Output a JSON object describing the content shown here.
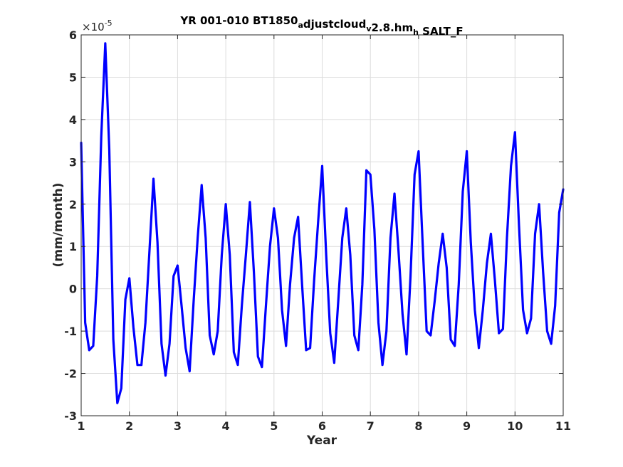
{
  "chart_data": {
    "type": "line",
    "title_parts": [
      {
        "text": "YR 001-010 BT1850",
        "sub": false
      },
      {
        "text": "a",
        "sub": true
      },
      {
        "text": "djustcloud",
        "sub": false
      },
      {
        "text": "v",
        "sub": true
      },
      {
        "text": "2.8.hm",
        "sub": false
      },
      {
        "text": "h",
        "sub": true
      },
      {
        "text": " SALT_F",
        "sub": false
      }
    ],
    "xlabel": "Year",
    "ylabel": "(mm/month)",
    "y_exponent_base": "×10",
    "y_exponent_power": "-5",
    "xlim": [
      1,
      11
    ],
    "ylim": [
      -3,
      6
    ],
    "xticks": [
      1,
      2,
      3,
      4,
      5,
      6,
      7,
      8,
      9,
      10,
      11
    ],
    "yticks": [
      -3,
      -2,
      -1,
      0,
      1,
      2,
      3,
      4,
      5,
      6
    ],
    "grid": true,
    "series": [
      {
        "color": "#0000ff",
        "x": [
          1.0,
          1.083,
          1.167,
          1.25,
          1.333,
          1.417,
          1.5,
          1.583,
          1.667,
          1.75,
          1.833,
          1.917,
          2.0,
          2.083,
          2.167,
          2.25,
          2.333,
          2.417,
          2.5,
          2.583,
          2.667,
          2.75,
          2.833,
          2.917,
          3.0,
          3.083,
          3.167,
          3.25,
          3.333,
          3.417,
          3.5,
          3.583,
          3.667,
          3.75,
          3.833,
          3.917,
          4.0,
          4.083,
          4.167,
          4.25,
          4.333,
          4.417,
          4.5,
          4.583,
          4.667,
          4.75,
          4.833,
          4.917,
          5.0,
          5.083,
          5.167,
          5.25,
          5.333,
          5.417,
          5.5,
          5.583,
          5.667,
          5.75,
          5.833,
          5.917,
          6.0,
          6.083,
          6.167,
          6.25,
          6.333,
          6.417,
          6.5,
          6.583,
          6.667,
          6.75,
          6.833,
          6.917,
          7.0,
          7.083,
          7.167,
          7.25,
          7.333,
          7.417,
          7.5,
          7.583,
          7.667,
          7.75,
          7.833,
          7.917,
          8.0,
          8.083,
          8.167,
          8.25,
          8.333,
          8.417,
          8.5,
          8.583,
          8.667,
          8.75,
          8.833,
          8.917,
          9.0,
          9.083,
          9.167,
          9.25,
          9.333,
          9.417,
          9.5,
          9.583,
          9.667,
          9.75,
          9.833,
          9.917,
          10.0,
          10.083,
          10.167,
          10.25,
          10.333,
          10.417,
          10.5,
          10.583,
          10.667,
          10.75,
          10.833,
          10.917,
          11.0
        ],
        "values": [
          3.45,
          -0.8,
          -1.45,
          -1.35,
          0.3,
          3.6,
          5.8,
          3.3,
          -1.2,
          -2.7,
          -2.35,
          -0.25,
          0.25,
          -0.9,
          -1.8,
          -1.8,
          -0.8,
          0.9,
          2.6,
          1.1,
          -1.3,
          -2.05,
          -1.3,
          0.3,
          0.55,
          -0.4,
          -1.4,
          -1.95,
          -0.3,
          1.2,
          2.45,
          1.2,
          -1.1,
          -1.55,
          -1.0,
          0.8,
          2.0,
          0.8,
          -1.5,
          -1.8,
          -0.4,
          0.8,
          2.05,
          0.4,
          -1.6,
          -1.85,
          -0.4,
          1.0,
          1.9,
          1.2,
          -0.5,
          -1.35,
          0.1,
          1.2,
          1.7,
          0.1,
          -1.45,
          -1.4,
          0.2,
          1.6,
          2.9,
          0.8,
          -1.05,
          -1.75,
          -0.3,
          1.2,
          1.9,
          0.8,
          -1.1,
          -1.45,
          0.1,
          2.8,
          2.7,
          1.4,
          -0.8,
          -1.8,
          -1.0,
          1.2,
          2.25,
          0.9,
          -0.6,
          -1.55,
          0.3,
          2.7,
          3.25,
          1.1,
          -1.0,
          -1.1,
          -0.3,
          0.6,
          1.3,
          0.5,
          -1.2,
          -1.35,
          0.1,
          2.3,
          3.25,
          1.1,
          -0.5,
          -1.4,
          -0.5,
          0.6,
          1.3,
          0.2,
          -1.05,
          -0.95,
          1.2,
          2.9,
          3.7,
          1.5,
          -0.5,
          -1.05,
          -0.7,
          1.3,
          2.0,
          0.4,
          -1.0,
          -1.3,
          -0.4,
          1.8,
          2.35
        ]
      }
    ]
  }
}
